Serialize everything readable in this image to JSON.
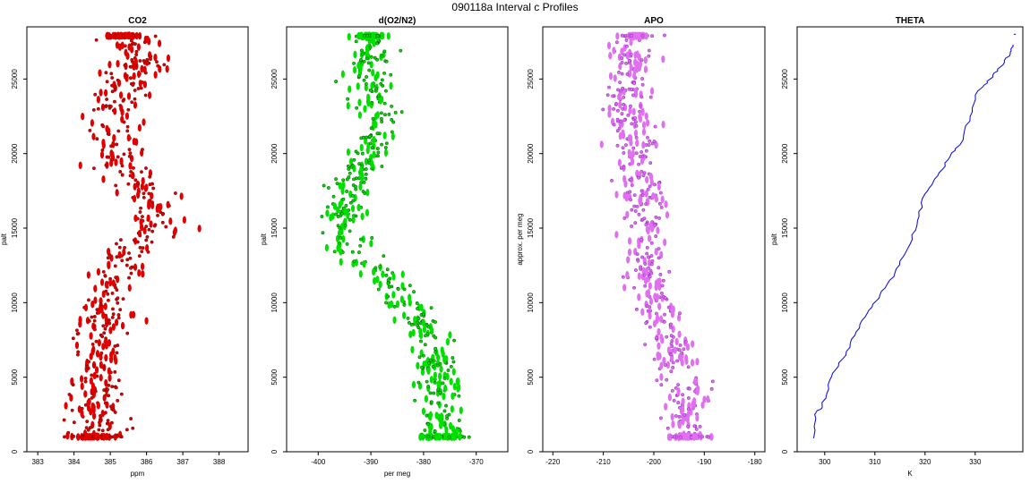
{
  "figure": {
    "title": "090118a   Interval c Profiles"
  },
  "chart_data": [
    {
      "type": "scatter",
      "title": "CO2",
      "xlabel": "ppm",
      "ylabel": "palt",
      "xlim": [
        382.7,
        388.8
      ],
      "ylim": [
        0,
        28500
      ],
      "xticks": [
        383,
        384,
        385,
        386,
        387,
        388
      ],
      "yticks": [
        0,
        5000,
        10000,
        15000,
        20000,
        25000
      ],
      "color": "#e00000",
      "outline": "#8b0000",
      "noise": 0.55,
      "profile": [
        [
          1000,
          384.6
        ],
        [
          4000,
          384.7
        ],
        [
          8000,
          384.7
        ],
        [
          11500,
          385.0
        ],
        [
          13000,
          385.4
        ],
        [
          15000,
          386.3
        ],
        [
          17500,
          386.1
        ],
        [
          19500,
          385.0
        ],
        [
          22000,
          385.0
        ],
        [
          24500,
          385.5
        ],
        [
          26500,
          385.8
        ],
        [
          28000,
          385.3
        ]
      ]
    },
    {
      "type": "scatter",
      "title": "d(O2/N2)",
      "xlabel": "per meg",
      "ylabel": "palt",
      "xlim": [
        -406,
        -364
      ],
      "ylim": [
        0,
        28500
      ],
      "xticks": [
        -400,
        -390,
        -380,
        -370
      ],
      "yticks": [
        0,
        5000,
        10000,
        15000,
        20000,
        25000
      ],
      "color": "#00e000",
      "outline": "#006400",
      "noise": 2.8,
      "profile": [
        [
          1000,
          -376
        ],
        [
          4000,
          -377
        ],
        [
          8000,
          -379
        ],
        [
          10500,
          -385
        ],
        [
          12000,
          -388
        ],
        [
          13500,
          -395
        ],
        [
          15500,
          -396
        ],
        [
          18500,
          -393
        ],
        [
          21000,
          -389
        ],
        [
          24000,
          -390
        ],
        [
          26500,
          -390
        ],
        [
          28000,
          -390
        ]
      ]
    },
    {
      "type": "scatter",
      "title": "APO",
      "xlabel": "",
      "ylabel": "approx. per meg",
      "xlim": [
        -222,
        -178
      ],
      "ylim": [
        0,
        28500
      ],
      "xticks": [
        -220,
        -210,
        -200,
        -190,
        -180
      ],
      "yticks": [
        0,
        5000,
        10000,
        15000,
        20000,
        25000
      ],
      "color": "#e070f0",
      "outline": "#9a30c0",
      "noise": 3.2,
      "profile": [
        [
          1000,
          -193
        ],
        [
          4000,
          -194
        ],
        [
          8000,
          -197
        ],
        [
          11000,
          -200
        ],
        [
          14000,
          -202
        ],
        [
          17000,
          -202
        ],
        [
          20000,
          -204
        ],
        [
          23000,
          -206
        ],
        [
          26000,
          -204
        ],
        [
          28000,
          -204
        ]
      ]
    },
    {
      "type": "line",
      "title": "THETA",
      "xlabel": "K",
      "ylabel": "palt",
      "xlim": [
        294.5,
        339.5
      ],
      "ylim": [
        0,
        28500
      ],
      "xticks": [
        300,
        310,
        320,
        330
      ],
      "yticks": [
        0,
        5000,
        10000,
        15000,
        20000,
        25000
      ],
      "color": "#0000e0",
      "points": [
        [
          297.8,
          900
        ],
        [
          298.0,
          2500
        ],
        [
          299.5,
          3000
        ],
        [
          301.0,
          4800
        ],
        [
          303.5,
          6200
        ],
        [
          306.0,
          7800
        ],
        [
          308.5,
          9300
        ],
        [
          311.0,
          10500
        ],
        [
          314.0,
          12000
        ],
        [
          316.5,
          13600
        ],
        [
          318.5,
          15500
        ],
        [
          320.0,
          17300
        ],
        [
          322.5,
          18500
        ],
        [
          325.0,
          19800
        ],
        [
          327.0,
          20600
        ],
        [
          329.0,
          22500
        ],
        [
          330.5,
          24200
        ],
        [
          333.0,
          25000
        ],
        [
          335.0,
          25800
        ],
        [
          337.0,
          26700
        ],
        [
          337.5,
          27300
        ]
      ]
    }
  ]
}
